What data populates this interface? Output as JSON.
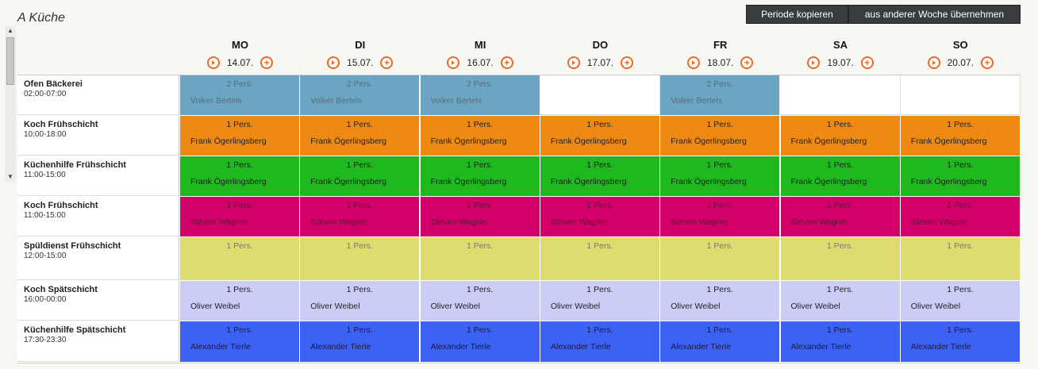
{
  "title": "A Küche",
  "buttons": {
    "copy_period": "Periode kopieren",
    "import_week": "aus anderer Woche übernehmen"
  },
  "colors": {
    "accent": "#f06a22",
    "blue": "#6aa6c3",
    "orange": "#ee8a14",
    "green": "#1db91e",
    "magenta": "#d30069",
    "khaki": "#dedb6f",
    "lavender": "#cccdf7",
    "royal": "#3c62f3"
  },
  "icons": {
    "next": "arrow-right-circle-icon",
    "add": "plus-circle-icon"
  },
  "days": [
    {
      "name": "MO",
      "date": "14.07."
    },
    {
      "name": "DI",
      "date": "15.07."
    },
    {
      "name": "MI",
      "date": "16.07."
    },
    {
      "name": "DO",
      "date": "17.07."
    },
    {
      "name": "FR",
      "date": "18.07."
    },
    {
      "name": "SA",
      "date": "19.07."
    },
    {
      "name": "SO",
      "date": "20.07."
    }
  ],
  "shifts": [
    {
      "name": "Ofen Bäckerei",
      "time": "02:00-07:00",
      "color": "#6aa6c3",
      "text_color": "#5a6d7a",
      "cells": [
        {
          "pers": "2 Pers.",
          "person": "Volker Bertels"
        },
        {
          "pers": "2 Pers.",
          "person": "Volker Bertels"
        },
        {
          "pers": "2 Pers.",
          "person": "Volker Bertels"
        },
        null,
        {
          "pers": "2 Pers.",
          "person": "Volker Bertels"
        },
        null,
        null
      ]
    },
    {
      "name": "Koch Frühschicht",
      "time": "10:00-18:00",
      "color": "#ee8a14",
      "text_color": "#222",
      "cells": [
        {
          "pers": "1 Pers.",
          "person": "Frank Ögerlingsberg"
        },
        {
          "pers": "1 Pers.",
          "person": "Frank Ögerlingsberg"
        },
        {
          "pers": "1 Pers.",
          "person": "Frank Ögerlingsberg"
        },
        {
          "pers": "1 Pers.",
          "person": "Frank Ögerlingsberg"
        },
        {
          "pers": "1 Pers.",
          "person": "Frank Ögerlingsberg"
        },
        {
          "pers": "1 Pers.",
          "person": "Frank Ögerlingsberg"
        },
        {
          "pers": "1 Pers.",
          "person": "Frank Ögerlingsberg"
        }
      ]
    },
    {
      "name": "Küchenhilfe Frühschicht",
      "time": "11:00-15:00",
      "color": "#1db91e",
      "text_color": "#222",
      "cells": [
        {
          "pers": "1 Pers.",
          "person": "Frank Ögerlingsberg"
        },
        {
          "pers": "1 Pers.",
          "person": "Frank Ögerlingsberg"
        },
        {
          "pers": "1 Pers.",
          "person": "Frank Ögerlingsberg"
        },
        {
          "pers": "1 Pers.",
          "person": "Frank Ögerlingsberg"
        },
        {
          "pers": "1 Pers.",
          "person": "Frank Ögerlingsberg"
        },
        {
          "pers": "1 Pers.",
          "person": "Frank Ögerlingsberg"
        },
        {
          "pers": "1 Pers.",
          "person": "Frank Ögerlingsberg"
        }
      ]
    },
    {
      "name": "Koch Frühschicht",
      "time": "11:00-15:00",
      "color": "#d30069",
      "text_color": "#5a1a36",
      "cells": [
        {
          "pers": "1 Pers.",
          "person": "Steven Wagner"
        },
        {
          "pers": "1 Pers.",
          "person": "Steven Wagner"
        },
        {
          "pers": "1 Pers.",
          "person": "Steven Wagner"
        },
        {
          "pers": "1 Pers.",
          "person": "Steven Wagner"
        },
        {
          "pers": "1 Pers.",
          "person": "Steven Wagner"
        },
        {
          "pers": "1 Pers.",
          "person": "Steven Wagner"
        },
        {
          "pers": "1 Pers.",
          "person": "Steven Wagner"
        }
      ]
    },
    {
      "name": "Spüldienst Frühschicht",
      "time": "12:00-15:00",
      "color": "#dedb6f",
      "text_color": "#777",
      "cells": [
        {
          "pers": "1 Pers.",
          "person": ""
        },
        {
          "pers": "1 Pers.",
          "person": ""
        },
        {
          "pers": "1 Pers.",
          "person": ""
        },
        {
          "pers": "1 Pers.",
          "person": ""
        },
        {
          "pers": "1 Pers.",
          "person": ""
        },
        {
          "pers": "1 Pers.",
          "person": ""
        },
        {
          "pers": "1 Pers.",
          "person": ""
        }
      ]
    },
    {
      "name": "Koch Spätschicht",
      "time": "16:00-00:00",
      "color": "#cccdf7",
      "text_color": "#222",
      "cells": [
        {
          "pers": "1 Pers.",
          "person": "Oliver Weibel"
        },
        {
          "pers": "1 Pers.",
          "person": "Oliver Weibel"
        },
        {
          "pers": "1 Pers.",
          "person": "Oliver Weibel"
        },
        {
          "pers": "1 Pers.",
          "person": "Oliver Weibel"
        },
        {
          "pers": "1 Pers.",
          "person": "Oliver Weibel"
        },
        {
          "pers": "1 Pers.",
          "person": "Oliver Weibel"
        },
        {
          "pers": "1 Pers.",
          "person": "Oliver Weibel"
        }
      ]
    },
    {
      "name": "Küchenhilfe Spätschicht",
      "time": "17:30-23:30",
      "color": "#3c62f3",
      "text_color": "#1a1a40",
      "cells": [
        {
          "pers": "1 Pers.",
          "person": "Alexander Tierle"
        },
        {
          "pers": "1 Pers.",
          "person": "Alexander Tierle"
        },
        {
          "pers": "1 Pers.",
          "person": "Alexander Tierle"
        },
        {
          "pers": "1 Pers.",
          "person": "Alexander Tierle"
        },
        {
          "pers": "1 Pers.",
          "person": "Alexander Tierle"
        },
        {
          "pers": "1 Pers.",
          "person": "Alexander Tierle"
        },
        {
          "pers": "1 Pers.",
          "person": "Alexander Tierle"
        }
      ]
    }
  ]
}
